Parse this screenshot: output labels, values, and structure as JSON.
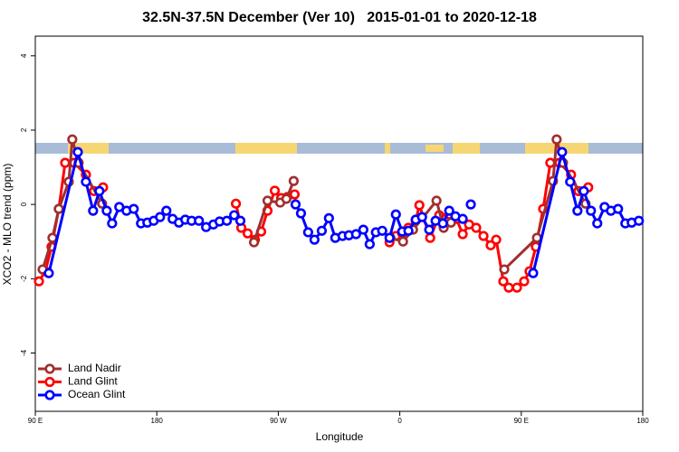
{
  "chart_data": {
    "type": "line",
    "title": "32.5N-37.5N December (Ver 10)   2015-01-01 to 2020-12-18",
    "xlabel": "Longitude",
    "ylabel": "XCO2 - MLO trend (ppm)",
    "xlim": [
      90,
      540
    ],
    "ylim": [
      -5.57,
      4.53
    ],
    "xticks": [
      {
        "value": 90,
        "label": "90 E"
      },
      {
        "value": 180,
        "label": "180"
      },
      {
        "value": 270,
        "label": "90 W"
      },
      {
        "value": 360,
        "label": "0"
      },
      {
        "value": 450,
        "label": "90 E"
      },
      {
        "value": 540,
        "label": "180"
      }
    ],
    "yticks": [
      -4,
      -2,
      0,
      2,
      4
    ],
    "legend": "bottom-left",
    "series": [
      {
        "name": "Land Nadir",
        "color": "#a0302f",
        "x": [
          95.4,
          102.7,
          107.4,
          114.8,
          117.4,
          122.1,
          139.5,
          200,
          252,
          262,
          271.4,
          276,
          281.4,
          320,
          353,
          362.4,
          369.8,
          387.2,
          392.5,
          397.9,
          420,
          437.4,
          461.6,
          473.5,
          476.2,
          480.9,
          497.6
        ],
        "values": [
          -1.75,
          -0.9,
          -0.12,
          0.61,
          1.75,
          1.12,
          0.02,
          null,
          -1.02,
          0.1,
          0.05,
          0.15,
          0.63,
          null,
          -0.9,
          -1.0,
          -0.68,
          0.1,
          -0.63,
          -0.49,
          null,
          -1.75,
          -0.9,
          0.63,
          1.75,
          1.12,
          0.02
        ]
      },
      {
        "name": "Land Glint",
        "color": "#ff0000",
        "x": [
          92.7,
          97.4,
          102,
          107.4,
          112.1,
          118.8,
          127.5,
          133.5,
          140.2,
          200,
          238.6,
          242.6,
          247.3,
          252.7,
          257.3,
          262,
          267.4,
          272.1,
          276.7,
          282.1,
          320,
          352.4,
          357.1,
          361.8,
          366.4,
          371.8,
          374.5,
          382.5,
          389.2,
          396.6,
          402,
          406.6,
          411.3,
          416.6,
          422,
          427.3,
          431.4,
          436.7,
          440.7,
          446.8,
          452.1,
          456.1,
          460.8,
          466.2,
          471.5,
          478.2,
          486.9,
          492.3,
          499.6
        ],
        "values": [
          -2.07,
          -1.8,
          -1.14,
          -0.12,
          1.12,
          1.12,
          0.8,
          0.36,
          0.46,
          null,
          0.02,
          -0.63,
          -0.78,
          -0.95,
          -0.73,
          -0.17,
          0.37,
          0.17,
          0.2,
          0.27,
          null,
          -1.02,
          -0.85,
          -0.78,
          -0.63,
          -0.44,
          -0.02,
          -0.9,
          -0.29,
          -0.27,
          -0.39,
          -0.8,
          -0.54,
          -0.63,
          -0.85,
          -1.1,
          -0.95,
          -2.07,
          -2.24,
          -2.24,
          -2.07,
          -1.8,
          -1.14,
          -0.12,
          1.12,
          1.12,
          0.8,
          0.36,
          0.46
        ]
      },
      {
        "name": "Ocean Glint",
        "color": "#0000ff",
        "x": [
          100,
          121.5,
          127.5,
          132.8,
          137.5,
          142.9,
          146.9,
          152.2,
          157.6,
          162.9,
          168.3,
          173,
          177.7,
          182.4,
          187.1,
          191.7,
          196.4,
          201.1,
          205.8,
          211.2,
          216.5,
          221.9,
          226.5,
          231.9,
          237.3,
          241.9,
          260,
          282.8,
          286.8,
          292.1,
          296.8,
          302.2,
          307.5,
          312.2,
          317.6,
          322.3,
          327.6,
          333,
          337.7,
          342.3,
          347,
          352.4,
          357.1,
          361.8,
          366.4,
          371.8,
          376.5,
          381.8,
          386.5,
          391.9,
          396.6,
          401.2,
          406.6,
          410,
          412.6,
          430,
          458.8,
          480.2,
          486.2,
          491.6,
          496.3,
          501.6,
          506.3,
          511.7,
          516.4,
          521.7,
          527.1,
          531.8,
          537.1
        ],
        "values": [
          -1.85,
          1.41,
          0.61,
          -0.17,
          0.36,
          -0.17,
          -0.51,
          -0.07,
          -0.17,
          -0.12,
          -0.51,
          -0.49,
          -0.44,
          -0.34,
          -0.17,
          -0.39,
          -0.49,
          -0.41,
          -0.44,
          -0.44,
          -0.61,
          -0.54,
          -0.46,
          -0.44,
          -0.29,
          -0.44,
          null,
          0.0,
          -0.24,
          -0.75,
          -0.95,
          -0.71,
          -0.37,
          -0.9,
          -0.85,
          -0.83,
          -0.8,
          -0.68,
          -1.07,
          -0.75,
          -0.71,
          -0.9,
          -0.27,
          -0.73,
          -0.71,
          -0.41,
          -0.34,
          -0.68,
          -0.44,
          -0.51,
          -0.17,
          -0.32,
          -0.39,
          null,
          0.0,
          null,
          -1.85,
          1.41,
          0.61,
          -0.17,
          0.36,
          -0.17,
          -0.51,
          -0.07,
          -0.17,
          -0.12,
          -0.51,
          -0.49,
          -0.44
        ]
      }
    ]
  }
}
